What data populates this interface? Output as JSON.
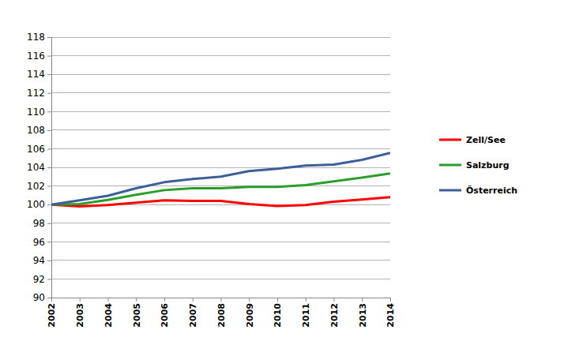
{
  "chart_data": {
    "type": "line",
    "x": [
      2002,
      2003,
      2004,
      2005,
      2006,
      2007,
      2008,
      2009,
      2010,
      2011,
      2012,
      2013,
      2014
    ],
    "xlim": [
      2002,
      2014
    ],
    "xticks": [
      2002,
      2003,
      2004,
      2005,
      2006,
      2007,
      2008,
      2009,
      2010,
      2011,
      2012,
      2013,
      2014
    ],
    "ylim": [
      90,
      118
    ],
    "yticks": [
      90,
      92,
      94,
      96,
      98,
      100,
      102,
      104,
      106,
      108,
      110,
      112,
      114,
      116,
      118
    ],
    "grid": true,
    "legend": "right",
    "series": [
      {
        "name": "Zell/See",
        "color": "#ff0000",
        "values": [
          100,
          99.8,
          99.95,
          100.2,
          100.45,
          100.4,
          100.4,
          100.05,
          99.85,
          99.95,
          100.3,
          100.55,
          100.8
        ]
      },
      {
        "name": "Salzburg",
        "color": "#2a9d2a",
        "values": [
          100,
          100.05,
          100.5,
          101.05,
          101.55,
          101.75,
          101.75,
          101.9,
          101.9,
          102.1,
          102.5,
          102.9,
          103.35
        ]
      },
      {
        "name": "Österreich",
        "color": "#3c5f9c",
        "values": [
          100,
          100.45,
          100.95,
          101.75,
          102.4,
          102.75,
          103.0,
          103.6,
          103.85,
          104.2,
          104.3,
          104.8,
          105.55
        ]
      }
    ]
  }
}
